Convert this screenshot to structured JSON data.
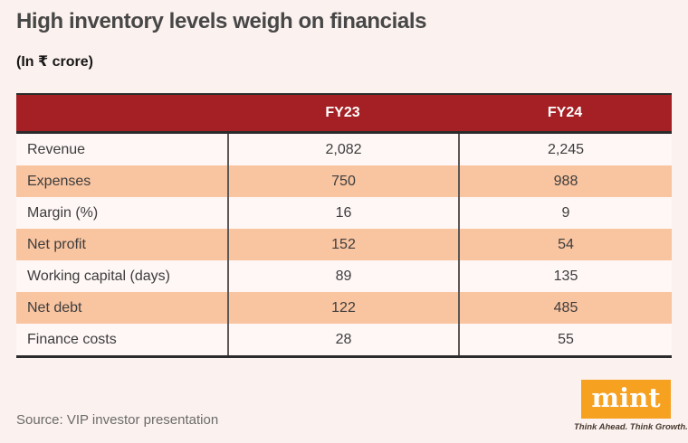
{
  "header": {
    "title": "High inventory levels weigh on financials",
    "subtitle": "(In ₹ crore)"
  },
  "table": {
    "columns": [
      "FY23",
      "FY24"
    ],
    "rows": [
      {
        "label": "Revenue",
        "fy23": "2,082",
        "fy24": "2,245"
      },
      {
        "label": "Expenses",
        "fy23": "750",
        "fy24": "988"
      },
      {
        "label": "Margin (%)",
        "fy23": "16",
        "fy24": "9"
      },
      {
        "label": "Net profit",
        "fy23": "152",
        "fy24": "54"
      },
      {
        "label": "Working capital (days)",
        "fy23": "89",
        "fy24": "135"
      },
      {
        "label": "Net debt",
        "fy23": "122",
        "fy24": "485"
      },
      {
        "label": "Finance costs",
        "fy23": "28",
        "fy24": "55"
      }
    ]
  },
  "chart_data": {
    "type": "table",
    "title": "High inventory levels weigh on financials",
    "unit": "₹ crore",
    "categories": [
      "Revenue",
      "Expenses",
      "Margin (%)",
      "Net profit",
      "Working capital (days)",
      "Net debt",
      "Finance costs"
    ],
    "series": [
      {
        "name": "FY23",
        "values": [
          2082,
          750,
          16,
          152,
          89,
          122,
          28
        ]
      },
      {
        "name": "FY24",
        "values": [
          2245,
          988,
          9,
          54,
          135,
          485,
          55
        ]
      }
    ]
  },
  "footer": {
    "source": "Source: VIP investor presentation",
    "logo_text": "mint",
    "logo_tagline": "Think Ahead. Think Growth."
  },
  "colors": {
    "background": "#fbf1ee",
    "header_red": "#a42024",
    "row_white": "#fef7f5",
    "row_peach": "#f9c4a0",
    "rule_dark": "#2b2b2b",
    "separator_gray": "#5d5855",
    "mint_orange": "#f6a11f"
  }
}
